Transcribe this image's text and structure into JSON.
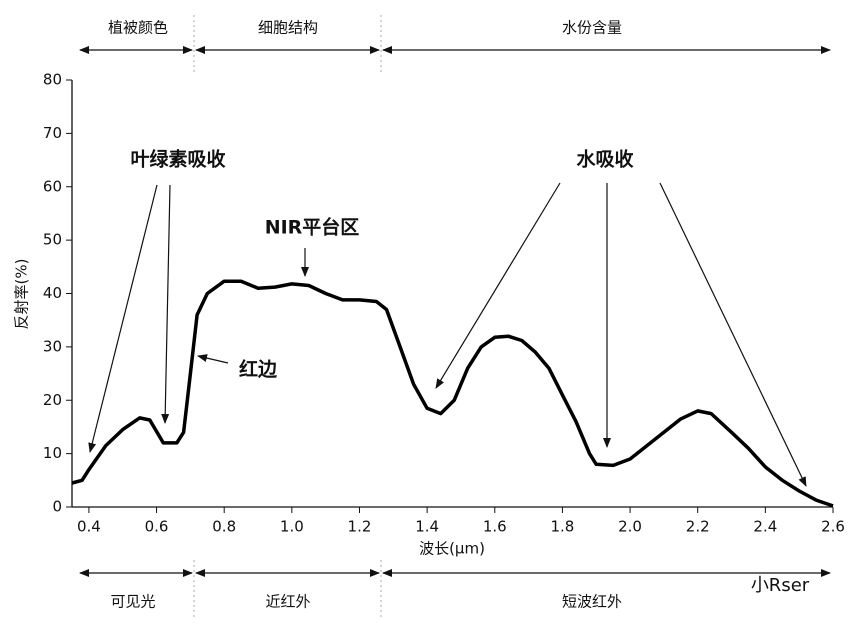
{
  "chart_data": {
    "type": "line",
    "xlabel": "波长(μm)",
    "ylabel": "反射率(%)",
    "x": [
      0.35,
      0.38,
      0.4,
      0.45,
      0.5,
      0.55,
      0.58,
      0.62,
      0.66,
      0.68,
      0.7,
      0.72,
      0.75,
      0.8,
      0.85,
      0.9,
      0.95,
      1.0,
      1.05,
      1.1,
      1.15,
      1.2,
      1.25,
      1.28,
      1.32,
      1.36,
      1.4,
      1.44,
      1.48,
      1.52,
      1.56,
      1.6,
      1.64,
      1.68,
      1.72,
      1.76,
      1.8,
      1.84,
      1.88,
      1.9,
      1.95,
      2.0,
      2.05,
      2.1,
      2.15,
      2.2,
      2.24,
      2.3,
      2.35,
      2.4,
      2.45,
      2.5,
      2.55,
      2.6
    ],
    "series": [
      {
        "color": "#000000",
        "values": [
          4.5,
          5,
          7,
          11.5,
          14.5,
          16.7,
          16.3,
          12,
          12,
          14,
          25,
          36,
          40,
          42.3,
          42.3,
          41,
          41.2,
          41.8,
          41.5,
          40,
          38.8,
          38.8,
          38.5,
          37,
          30,
          23,
          18.5,
          17.5,
          20,
          26,
          30,
          31.8,
          32,
          31.2,
          29,
          26,
          21,
          16,
          10,
          8,
          7.8,
          9,
          11.5,
          14,
          16.5,
          18,
          17.5,
          14,
          11,
          7.5,
          5,
          3,
          1.3,
          0.2
        ]
      }
    ],
    "xlim": [
      0.35,
      2.6
    ],
    "xticks": [
      0.4,
      0.6,
      0.8,
      {
        "value": 1,
        "label": "1.0"
      },
      1.2,
      1.4,
      1.6,
      1.8,
      {
        "value": 2,
        "label": "2.0"
      },
      2.2,
      2.4,
      2.6
    ],
    "ylim": [
      0,
      80
    ],
    "yticks": [
      0,
      10,
      20,
      30,
      40,
      50,
      60,
      70,
      80
    ],
    "top_bands": [
      "植被颜色",
      "细胞结构",
      "水份含量"
    ],
    "bottom_bands": [
      "可见光",
      "近红外",
      "短波红外"
    ],
    "annotations": [
      "叶绿素吸收",
      "NIR平台区",
      "红边",
      "水吸收"
    ],
    "watermark": "小Rser"
  }
}
